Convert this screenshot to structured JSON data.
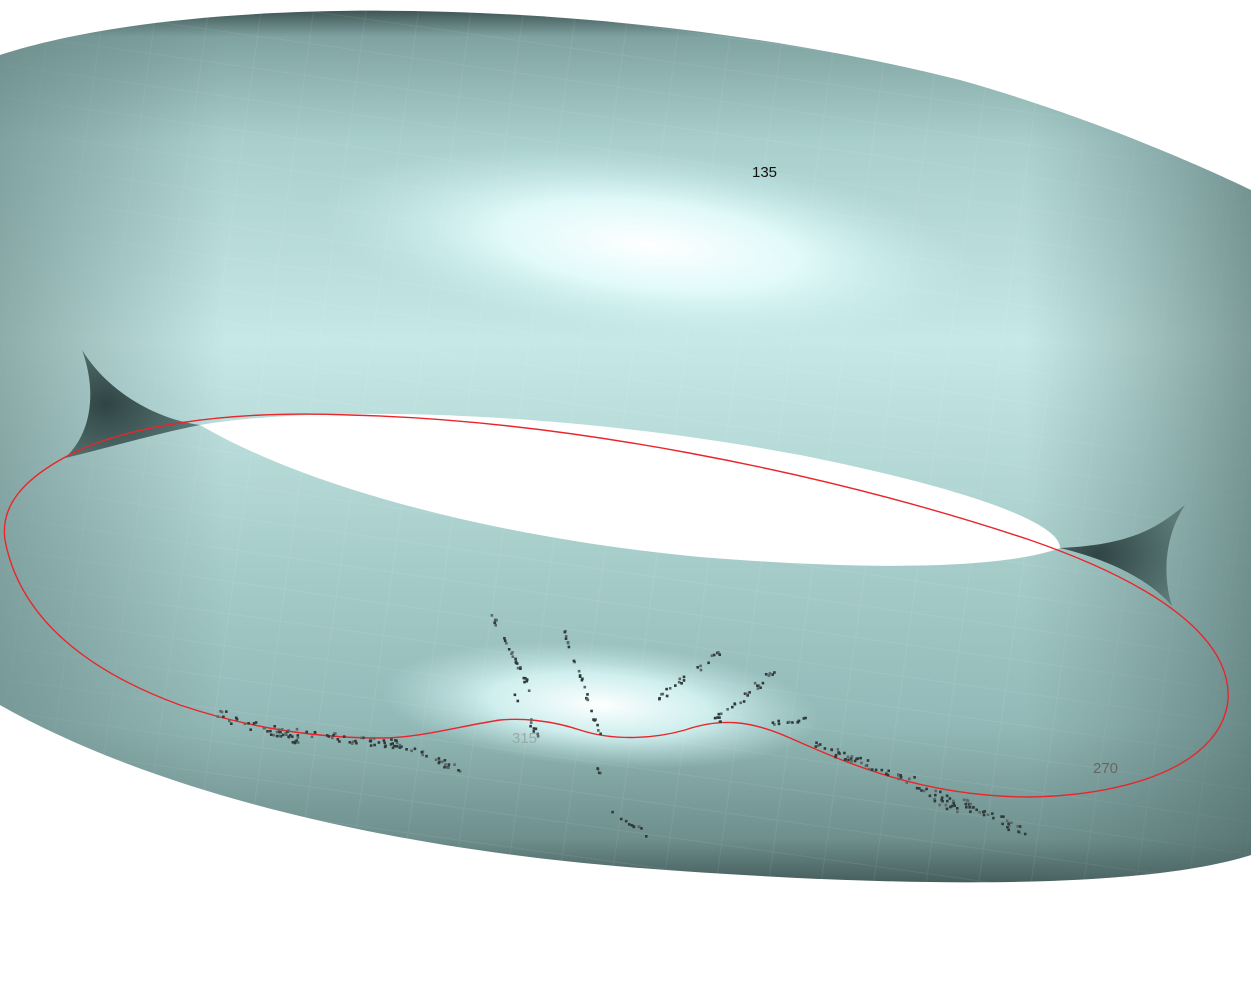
{
  "scene": {
    "surface": "torus",
    "colors": {
      "background": "#ffffff",
      "surface_base": "#a9d4d2",
      "surface_highlight": "#e6ffff",
      "surface_shadow": "#3e5553",
      "curve": "#e8262b",
      "points": "#333333"
    },
    "angle_labels": [
      {
        "text": "135",
        "color": "#111111"
      },
      {
        "text": "270",
        "color": "#666666"
      },
      {
        "text": "315",
        "color": "#9aa9a8"
      }
    ]
  }
}
